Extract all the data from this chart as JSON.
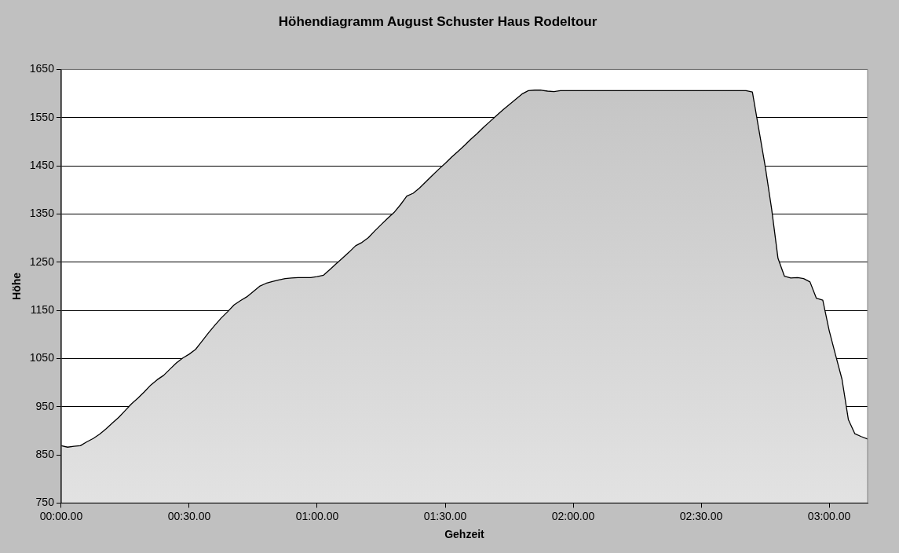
{
  "chart_data": {
    "type": "area",
    "title": "Höhendiagramm August Schuster Haus Rodeltour",
    "xlabel": "Gehzeit",
    "ylabel": "Höhe",
    "categories": [
      "00:00.00",
      null,
      null,
      null,
      null,
      null,
      null,
      null,
      null,
      null,
      null,
      null,
      null,
      null,
      null,
      null,
      null,
      null,
      null,
      null,
      "00:30.00",
      null,
      null,
      null,
      null,
      null,
      null,
      null,
      null,
      null,
      null,
      null,
      null,
      null,
      null,
      null,
      null,
      null,
      null,
      null,
      "01:00.00",
      null,
      null,
      null,
      null,
      null,
      null,
      null,
      null,
      null,
      null,
      null,
      null,
      null,
      null,
      null,
      null,
      null,
      null,
      null,
      "01:30.00",
      null,
      null,
      null,
      null,
      null,
      null,
      null,
      null,
      null,
      null,
      null,
      null,
      null,
      null,
      null,
      null,
      null,
      null,
      null,
      "02:00.00",
      null,
      null,
      null,
      null,
      null,
      null,
      null,
      null,
      null,
      null,
      null,
      null,
      null,
      null,
      null,
      null,
      null,
      null,
      null,
      "02:30.00",
      null,
      null,
      null,
      null,
      null,
      null,
      null,
      null,
      null,
      null,
      null,
      null,
      null,
      null,
      null,
      null,
      null,
      null,
      null,
      "03:00.00",
      null,
      null,
      null,
      null,
      null,
      null
    ],
    "values": [
      869,
      866,
      868,
      869,
      877,
      884,
      893,
      904,
      916,
      928,
      942,
      956,
      968,
      981,
      995,
      1006,
      1015,
      1028,
      1041,
      1051,
      1059,
      1069,
      1086,
      1103,
      1119,
      1134,
      1147,
      1161,
      1170,
      1178,
      1189,
      1200,
      1206,
      1210,
      1213,
      1216,
      1217,
      1218,
      1218,
      1218,
      1220,
      1223,
      1235,
      1247,
      1259,
      1271,
      1284,
      1291,
      1301,
      1315,
      1328,
      1341,
      1353,
      1369,
      1387,
      1393,
      1404,
      1417,
      1430,
      1443,
      1455,
      1468,
      1480,
      1492,
      1505,
      1517,
      1530,
      1542,
      1554,
      1566,
      1577,
      1588,
      1599,
      1606,
      1607,
      1607,
      1605,
      1604,
      1606,
      1606,
      1606,
      1606,
      1606,
      1606,
      1606,
      1606,
      1606,
      1606,
      1606,
      1606,
      1606,
      1606,
      1606,
      1606,
      1606,
      1606,
      1606,
      1606,
      1606,
      1606,
      1606,
      1606,
      1606,
      1606,
      1606,
      1606,
      1606,
      1606,
      1603,
      1526,
      1449,
      1361,
      1258,
      1221,
      1217,
      1218,
      1216,
      1209,
      1175,
      1171,
      1108,
      1057,
      1007,
      923,
      894,
      888,
      883
    ],
    "color": "#c4c4c4",
    "ylim": [
      750,
      1650
    ],
    "yticks": [
      750,
      850,
      950,
      1050,
      1150,
      1250,
      1350,
      1450,
      1550,
      1650
    ],
    "grid": "y",
    "legend": false,
    "marker": "none",
    "line_style": "solid"
  }
}
